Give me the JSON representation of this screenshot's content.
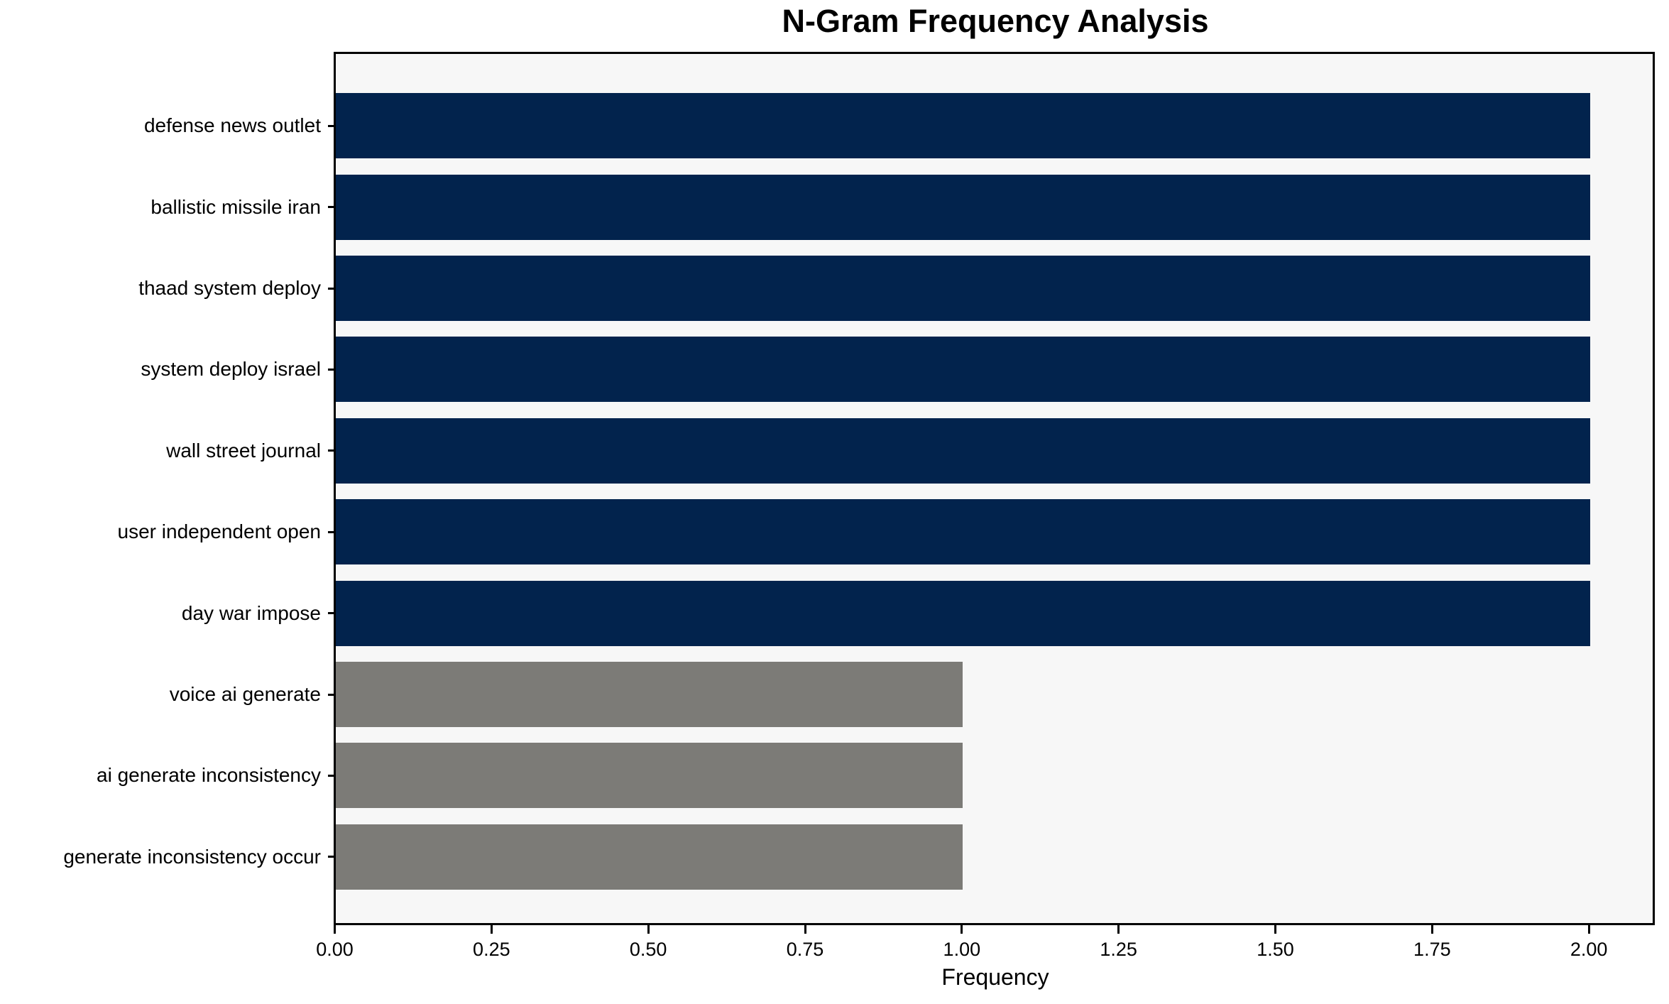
{
  "chart_data": {
    "type": "bar",
    "orientation": "horizontal",
    "title": "N-Gram Frequency Analysis",
    "xlabel": "Frequency",
    "ylabel": "",
    "categories": [
      "defense news outlet",
      "ballistic missile iran",
      "thaad system deploy",
      "system deploy israel",
      "wall street journal",
      "user independent open",
      "day war impose",
      "voice ai generate",
      "ai generate inconsistency",
      "generate inconsistency occur"
    ],
    "values": [
      2,
      2,
      2,
      2,
      2,
      2,
      2,
      1,
      1,
      1
    ],
    "bar_colors": [
      "#02234d",
      "#02234d",
      "#02234d",
      "#02234d",
      "#02234d",
      "#02234d",
      "#02234d",
      "#7c7b77",
      "#7c7b77",
      "#7c7b77"
    ],
    "xticks": [
      "0.00",
      "0.25",
      "0.50",
      "0.75",
      "1.00",
      "1.25",
      "1.50",
      "1.75",
      "2.00"
    ],
    "xtick_values": [
      0,
      0.25,
      0.5,
      0.75,
      1.0,
      1.25,
      1.5,
      1.75,
      2.0
    ],
    "xlim": [
      0,
      2.1
    ],
    "grid": false,
    "legend": null,
    "colors": {
      "plot_background": "#f7f7f7",
      "figure_background": "#ffffff",
      "spine": "#000000",
      "text": "#000000",
      "bar_high": "#02234d",
      "bar_low": "#7c7b77"
    }
  }
}
